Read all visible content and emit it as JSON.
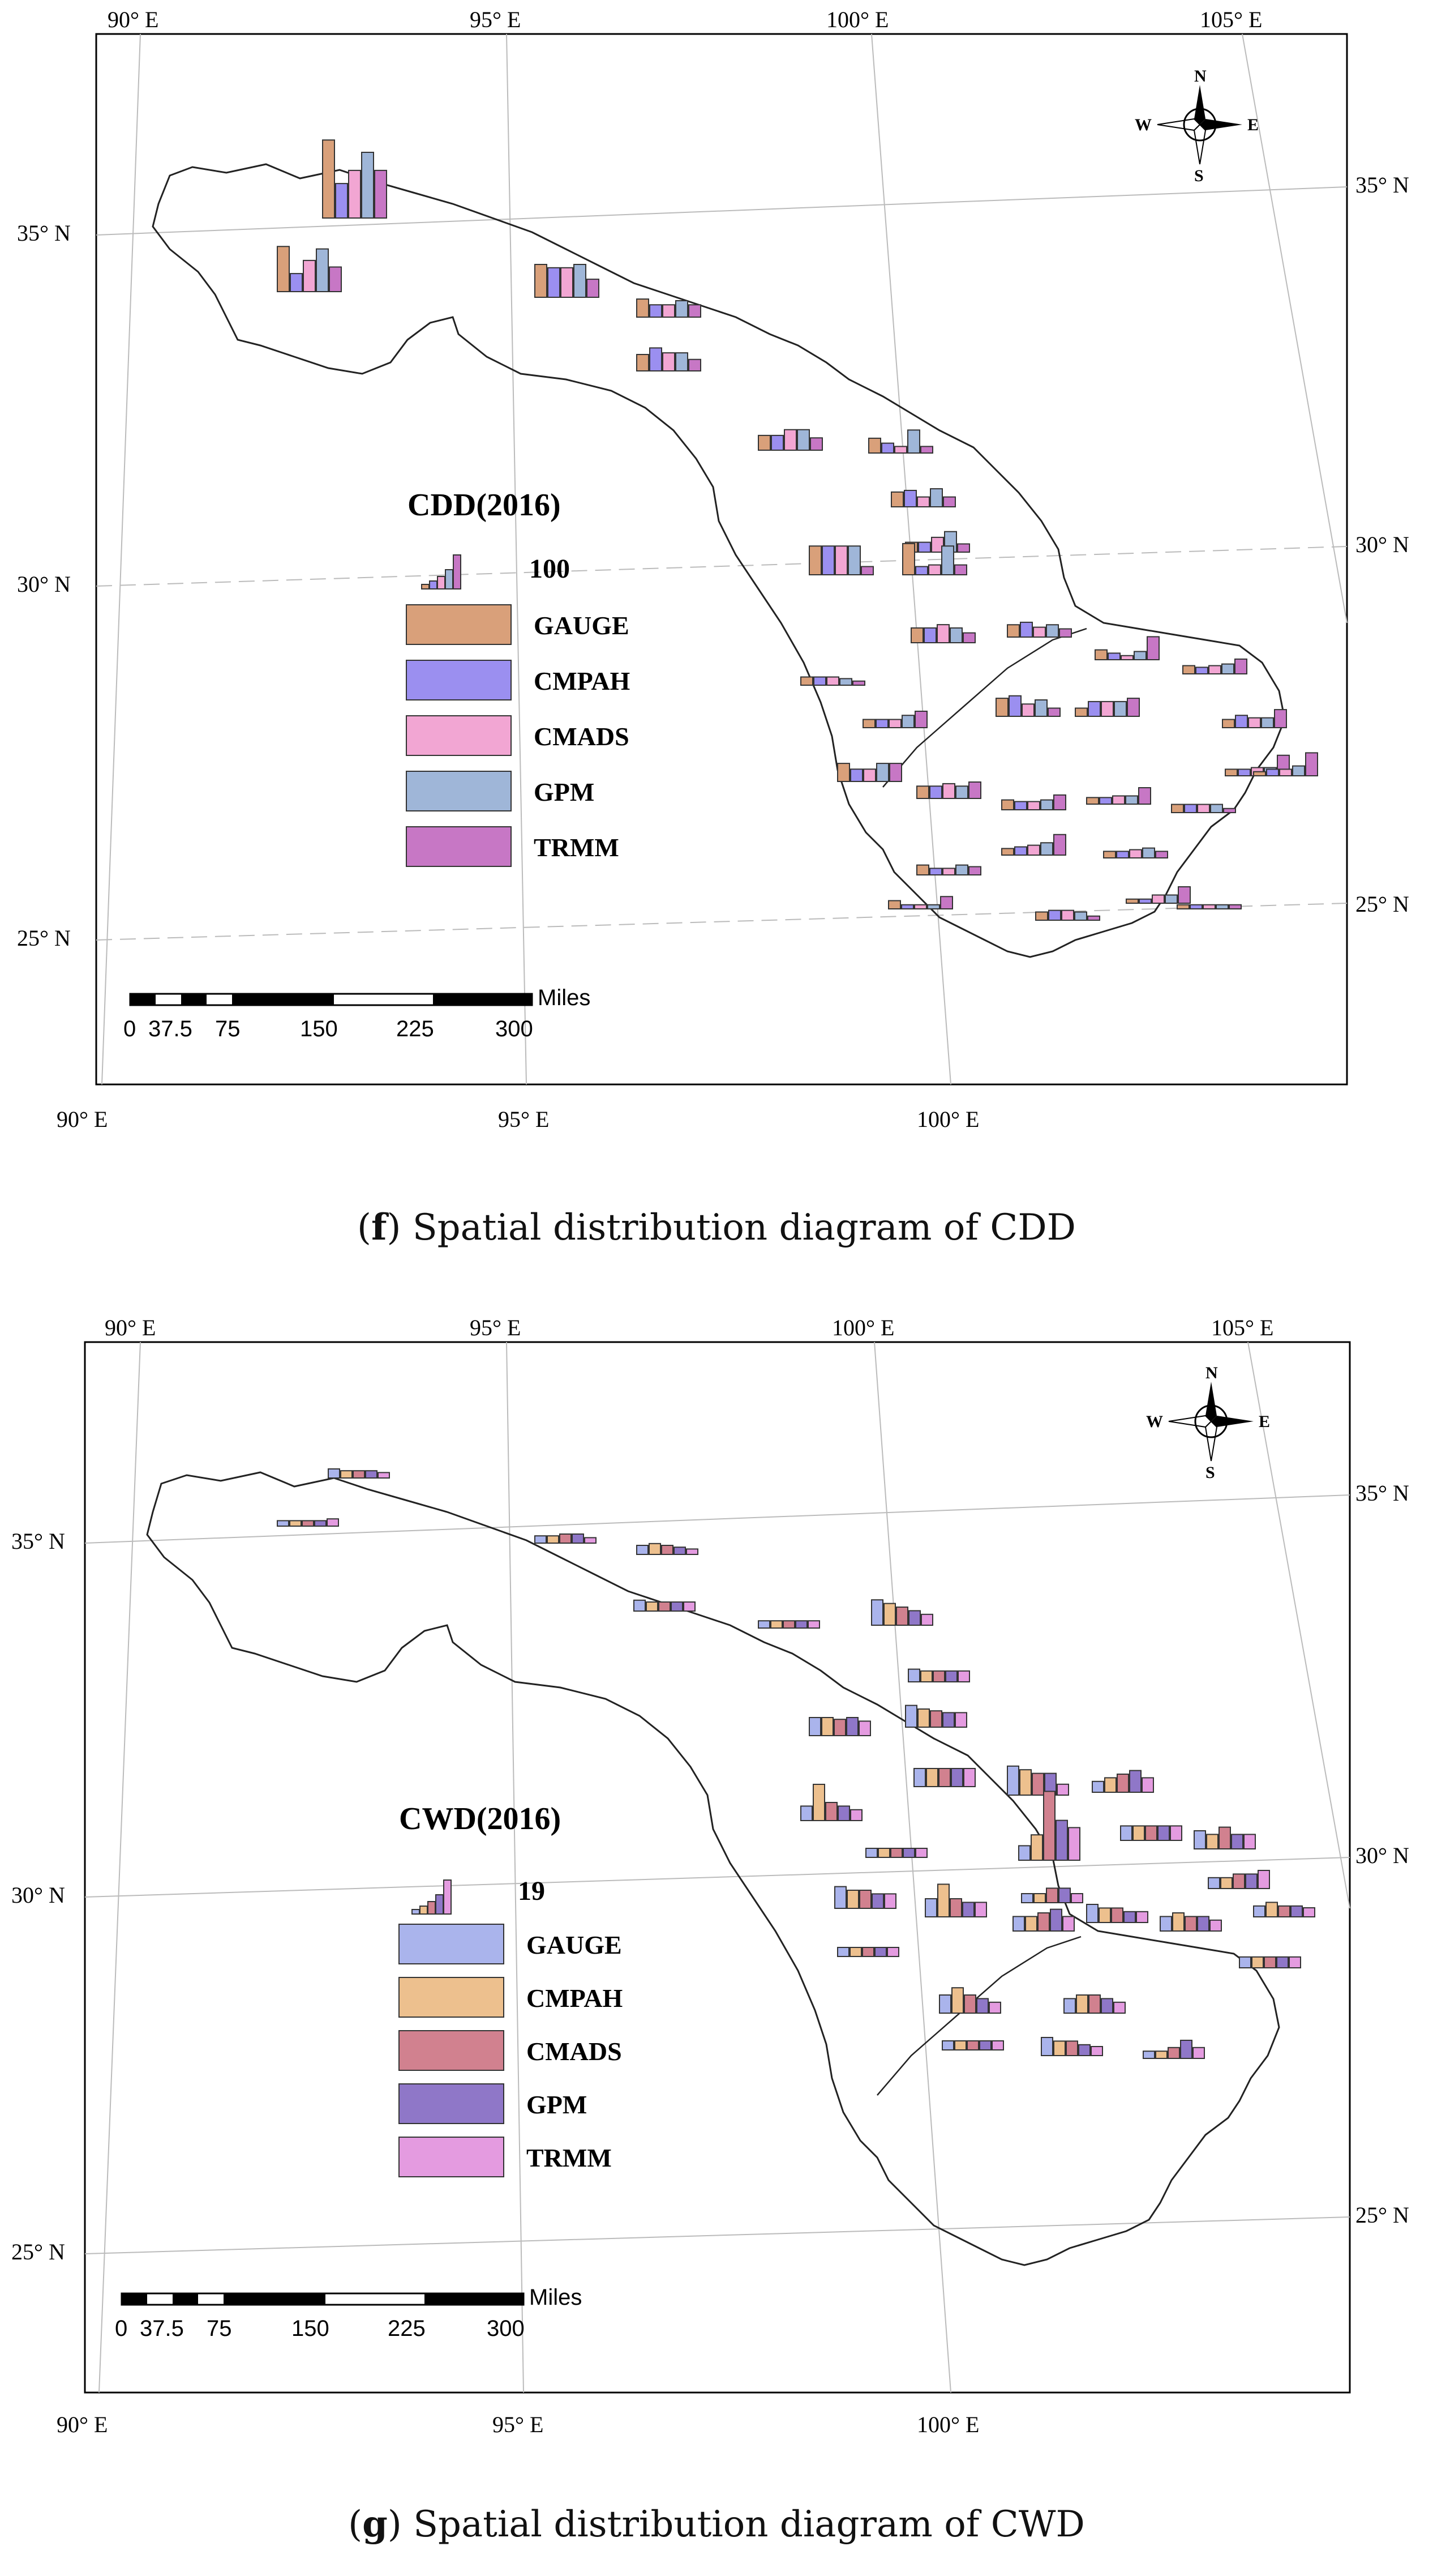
{
  "panels": [
    {
      "id": "f",
      "caption_letter": "f",
      "caption_text": " Spatial distribution diagram of CDD",
      "legend_title": "CDD(2016)",
      "legend_value": "100",
      "legend_items": [
        "GAUGE",
        "CMPAH",
        "CMADS",
        "GPM",
        "TRMM"
      ],
      "series_colors": [
        "#d9a07a",
        "#9b8ff0",
        "#f2a6d3",
        "#9fb6d8",
        "#c777c5"
      ],
      "top_lon_labels": [
        "90° E",
        "95° E",
        "100° E",
        "105° E"
      ],
      "bottom_lon_labels": [
        "90° E",
        "95° E",
        "100° E"
      ],
      "left_lat_labels": [
        "35° N",
        "30° N",
        "25° N"
      ],
      "right_lat_labels": [
        "35° N",
        "30° N",
        "25° N"
      ],
      "compass": {
        "n": "N",
        "s": "S",
        "e": "E",
        "w": "W"
      },
      "scale_unit": "Miles",
      "scale_ticks": [
        "0",
        "37.5",
        "75",
        "150",
        "225",
        "300"
      ]
    },
    {
      "id": "g",
      "caption_letter": "g",
      "caption_text": " Spatial distribution diagram of CWD",
      "legend_title": "CWD(2016)",
      "legend_value": "19",
      "legend_items": [
        "GAUGE",
        "CMPAH",
        "CMADS",
        "GPM",
        "TRMM"
      ],
      "series_colors": [
        "#aab4ec",
        "#edc08e",
        "#d1818f",
        "#8f77c8",
        "#e49be0"
      ],
      "top_lon_labels": [
        "90° E",
        "95° E",
        "100° E",
        "105° E"
      ],
      "bottom_lon_labels": [
        "90° E",
        "95° E",
        "100° E"
      ],
      "left_lat_labels": [
        "35° N",
        "30° N",
        "25° N"
      ],
      "right_lat_labels": [
        "35° N",
        "30° N",
        "25° N"
      ],
      "compass": {
        "n": "N",
        "s": "S",
        "e": "E",
        "w": "W"
      },
      "scale_unit": "Miles",
      "scale_ticks": [
        "0",
        "37.5",
        "75",
        "150",
        "225",
        "300"
      ]
    }
  ],
  "chart_data": [
    {
      "type": "bar",
      "title": "CDD(2016)",
      "series_names": [
        "GAUGE",
        "CMPAH",
        "CMADS",
        "GPM",
        "TRMM"
      ],
      "legend_reference_value": 100,
      "stations": [
        {
          "values": [
            55,
            22,
            38,
            52,
            30
          ]
        },
        {
          "values": [
            95,
            42,
            58,
            80,
            58
          ]
        },
        {
          "values": [
            40,
            36,
            36,
            40,
            22
          ]
        },
        {
          "values": [
            22,
            15,
            15,
            20,
            15
          ]
        },
        {
          "values": [
            20,
            28,
            22,
            22,
            14
          ]
        },
        {
          "values": [
            18,
            18,
            25,
            25,
            15
          ]
        },
        {
          "values": [
            18,
            12,
            8,
            28,
            8
          ]
        },
        {
          "values": [
            18,
            20,
            12,
            22,
            12
          ]
        },
        {
          "values": [
            12,
            12,
            18,
            25,
            10
          ]
        },
        {
          "values": [
            35,
            35,
            35,
            35,
            10
          ]
        },
        {
          "values": [
            38,
            10,
            12,
            35,
            12
          ]
        },
        {
          "values": [
            18,
            18,
            22,
            18,
            12
          ]
        },
        {
          "values": [
            15,
            18,
            12,
            15,
            10
          ]
        },
        {
          "values": [
            12,
            8,
            5,
            10,
            28
          ]
        },
        {
          "values": [
            10,
            10,
            10,
            8,
            5
          ]
        },
        {
          "values": [
            10,
            10,
            10,
            15,
            20
          ]
        },
        {
          "values": [
            22,
            25,
            15,
            20,
            10
          ]
        },
        {
          "values": [
            10,
            18,
            18,
            18,
            22
          ]
        },
        {
          "values": [
            10,
            8,
            10,
            12,
            18
          ]
        },
        {
          "values": [
            10,
            15,
            12,
            12,
            22
          ]
        },
        {
          "values": [
            22,
            15,
            15,
            22,
            22
          ]
        },
        {
          "values": [
            15,
            15,
            18,
            15,
            20
          ]
        },
        {
          "values": [
            12,
            10,
            10,
            12,
            18
          ]
        },
        {
          "values": [
            8,
            8,
            10,
            10,
            20
          ]
        },
        {
          "values": [
            8,
            8,
            10,
            10,
            25
          ]
        },
        {
          "values": [
            5,
            8,
            8,
            12,
            28
          ]
        },
        {
          "values": [
            8,
            10,
            12,
            15,
            25
          ]
        },
        {
          "values": [
            12,
            8,
            8,
            12,
            10
          ]
        },
        {
          "values": [
            8,
            8,
            10,
            12,
            8
          ]
        },
        {
          "values": [
            10,
            10,
            10,
            10,
            5
          ]
        },
        {
          "values": [
            10,
            12,
            12,
            10,
            5
          ]
        },
        {
          "values": [
            5,
            5,
            5,
            5,
            5
          ]
        },
        {
          "values": [
            5,
            5,
            10,
            10,
            20
          ]
        },
        {
          "values": [
            10,
            5,
            5,
            5,
            15
          ]
        }
      ]
    },
    {
      "type": "bar",
      "title": "CWD(2016)",
      "series_names": [
        "GAUGE",
        "CMPAH",
        "CMADS",
        "GPM",
        "TRMM"
      ],
      "legend_reference_value": 19,
      "stations": [
        {
          "values": [
            5,
            4,
            4,
            4,
            3
          ]
        },
        {
          "values": [
            3,
            3,
            3,
            3,
            4
          ]
        },
        {
          "values": [
            4,
            4,
            5,
            5,
            3
          ]
        },
        {
          "values": [
            5,
            6,
            5,
            4,
            3
          ]
        },
        {
          "values": [
            6,
            5,
            5,
            5,
            5
          ]
        },
        {
          "values": [
            4,
            4,
            4,
            4,
            4
          ]
        },
        {
          "values": [
            14,
            12,
            10,
            8,
            6
          ]
        },
        {
          "values": [
            7,
            6,
            6,
            6,
            6
          ]
        },
        {
          "values": [
            10,
            10,
            9,
            10,
            8
          ]
        },
        {
          "values": [
            12,
            10,
            9,
            8,
            8
          ]
        },
        {
          "values": [
            10,
            10,
            10,
            10,
            10
          ]
        },
        {
          "values": [
            16,
            14,
            12,
            12,
            6
          ]
        },
        {
          "values": [
            6,
            8,
            10,
            12,
            8
          ]
        },
        {
          "values": [
            8,
            20,
            10,
            8,
            6
          ]
        },
        {
          "values": [
            8,
            14,
            38,
            22,
            18
          ]
        },
        {
          "values": [
            5,
            5,
            5,
            5,
            5
          ]
        },
        {
          "values": [
            5,
            5,
            8,
            8,
            5
          ]
        },
        {
          "values": [
            8,
            8,
            8,
            8,
            8
          ]
        },
        {
          "values": [
            10,
            8,
            12,
            8,
            8
          ]
        },
        {
          "values": [
            12,
            10,
            10,
            8,
            8
          ]
        },
        {
          "values": [
            10,
            18,
            10,
            8,
            8
          ]
        },
        {
          "values": [
            8,
            8,
            10,
            12,
            8
          ]
        },
        {
          "values": [
            10,
            8,
            8,
            6,
            6
          ]
        },
        {
          "values": [
            6,
            6,
            8,
            8,
            10
          ]
        },
        {
          "values": [
            6,
            8,
            6,
            6,
            5
          ]
        },
        {
          "values": [
            8,
            10,
            8,
            8,
            6
          ]
        },
        {
          "values": [
            10,
            14,
            10,
            8,
            6
          ]
        },
        {
          "values": [
            8,
            10,
            10,
            8,
            6
          ]
        },
        {
          "values": [
            5,
            5,
            5,
            5,
            5
          ]
        },
        {
          "values": [
            4,
            4,
            6,
            10,
            6
          ]
        },
        {
          "values": [
            10,
            8,
            8,
            6,
            5
          ]
        },
        {
          "values": [
            6,
            6,
            6,
            6,
            6
          ]
        },
        {
          "values": [
            5,
            5,
            5,
            5,
            5
          ]
        }
      ]
    }
  ]
}
